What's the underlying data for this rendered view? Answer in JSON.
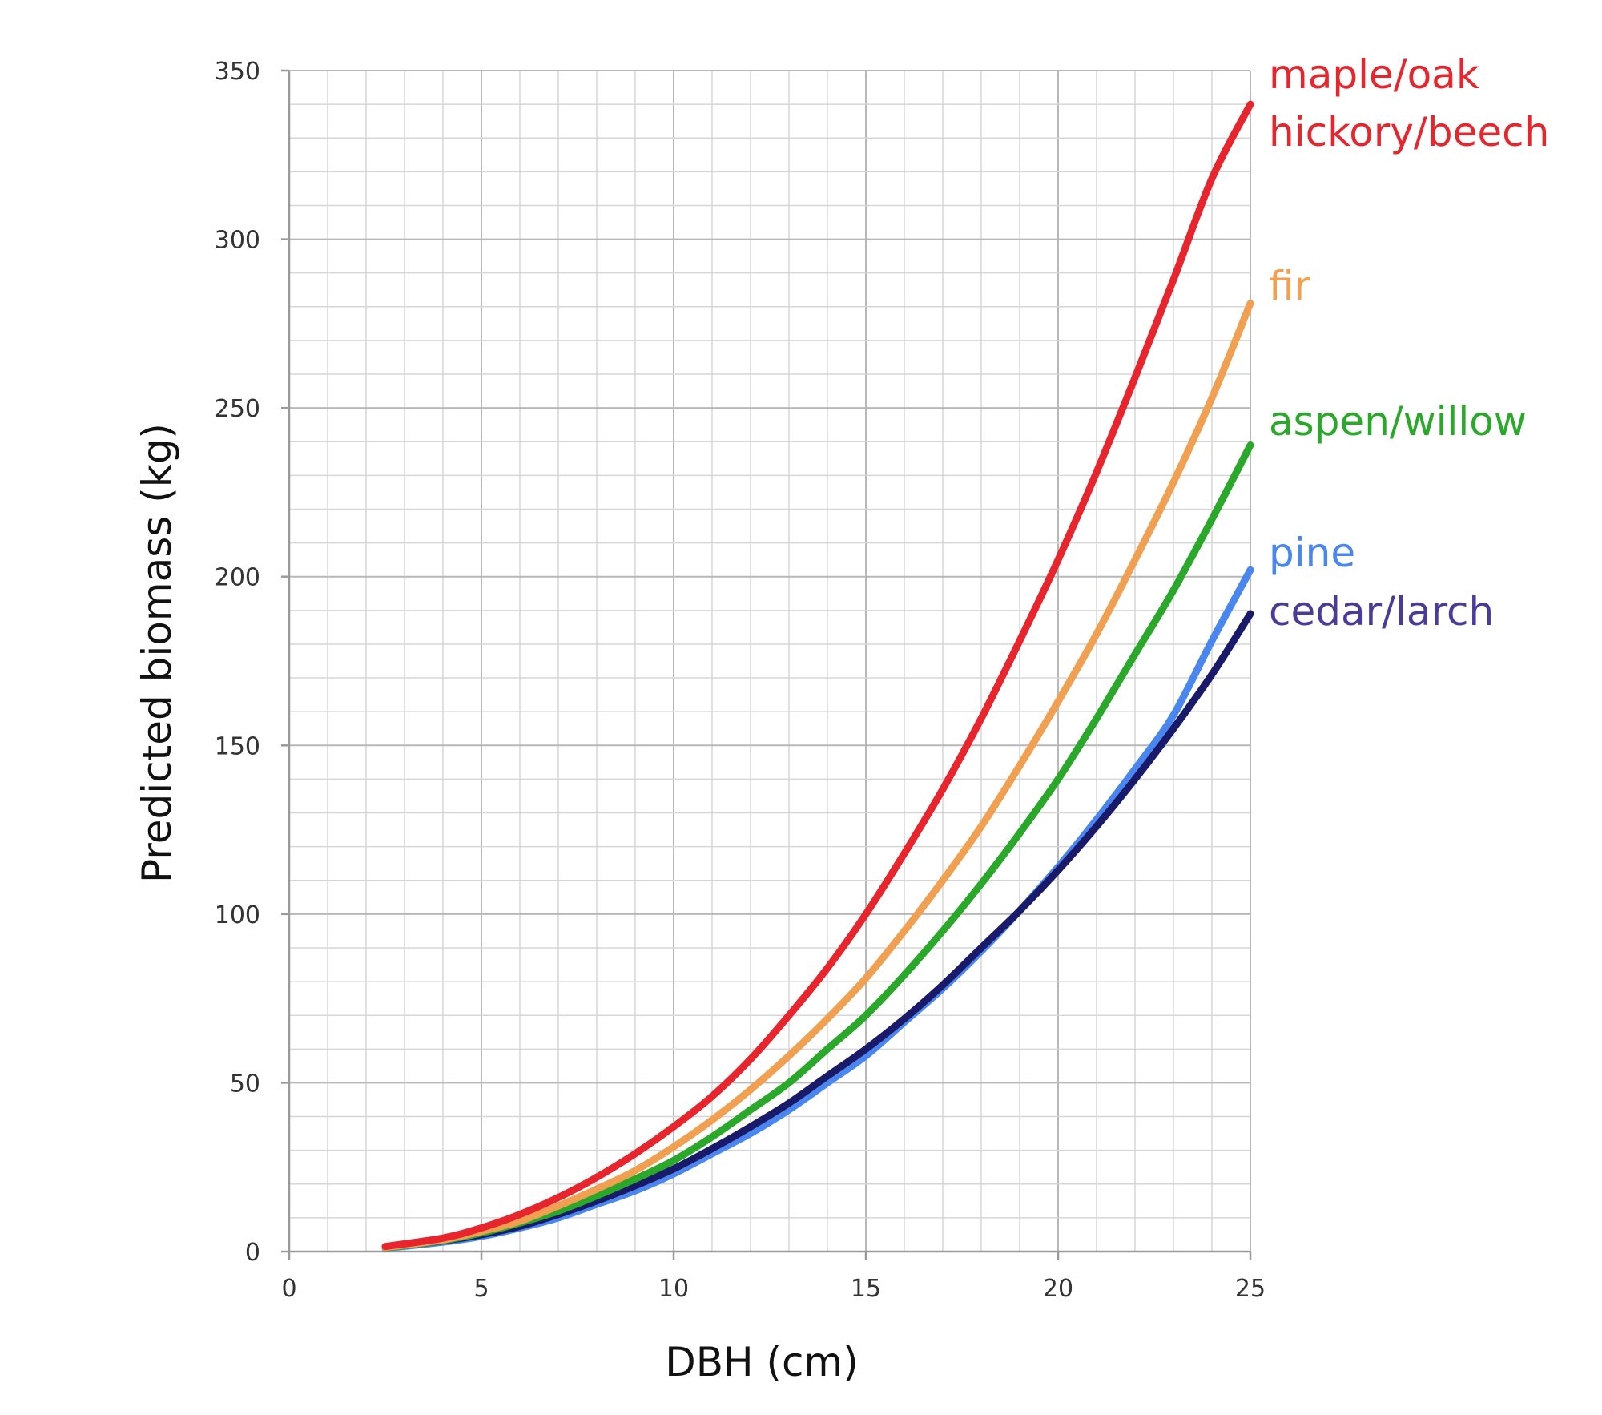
{
  "chart_data": {
    "type": "line",
    "title": "",
    "xlabel": "DBH (cm)",
    "ylabel": "Predicted biomass (kg)",
    "xlim": [
      0,
      25
    ],
    "ylim": [
      0,
      350
    ],
    "xticks": [
      0,
      5,
      10,
      15,
      20,
      25
    ],
    "yticks": [
      0,
      50,
      100,
      150,
      200,
      250,
      300,
      350
    ],
    "x_minor_step": 1,
    "y_minor_step": 10,
    "grid": true,
    "legend": "series labels placed at right end of lines",
    "x": [
      2.5,
      4,
      5,
      6,
      7,
      8,
      9,
      10,
      11,
      12,
      13,
      14,
      15,
      16,
      17,
      18,
      19,
      20,
      21,
      22,
      23,
      24,
      25
    ],
    "series": [
      {
        "name": "maple/oak",
        "color": "#e8252d",
        "values": [
          1.5,
          4,
          7,
          11,
          16,
          22,
          29,
          37,
          46,
          57,
          70,
          84,
          100,
          118,
          137,
          158,
          181,
          205,
          231,
          259,
          288,
          318,
          340
        ]
      },
      {
        "name": "hickory/beech",
        "color": "#e8252d",
        "values": [
          1.5,
          4,
          7,
          11,
          16,
          22,
          29,
          37,
          46,
          57,
          70,
          84,
          100,
          118,
          137,
          158,
          181,
          205,
          231,
          259,
          288,
          318,
          340
        ]
      },
      {
        "name": "fir",
        "color": "#f0a050",
        "values": [
          1.2,
          3.5,
          6,
          9,
          13.5,
          18.5,
          24,
          31,
          39,
          48,
          58,
          69,
          81,
          95,
          110,
          126,
          144,
          163,
          183,
          205,
          228,
          253,
          281
        ]
      },
      {
        "name": "aspen/willow",
        "color": "#2aa82a",
        "values": [
          1.1,
          3.3,
          5.5,
          8.5,
          12,
          16.5,
          21.5,
          27,
          34,
          42,
          50,
          60,
          70,
          82,
          95,
          109,
          124,
          140,
          158,
          177,
          196,
          217,
          239
        ]
      },
      {
        "name": "pine",
        "color": "#4a86f0",
        "values": [
          1,
          2.8,
          4.5,
          7,
          10,
          14,
          18,
          23,
          29,
          35,
          42,
          50,
          58,
          68,
          78,
          89,
          101,
          114,
          128,
          143,
          159,
          181,
          202
        ]
      },
      {
        "name": "cedar/larch",
        "color": "#1a1a6a",
        "values": [
          1.2,
          3.2,
          5,
          7.5,
          11,
          15,
          19.5,
          24.5,
          30.5,
          37,
          44,
          52,
          60,
          69,
          79,
          90,
          101,
          113,
          126,
          140,
          155,
          171,
          189
        ]
      }
    ]
  }
}
